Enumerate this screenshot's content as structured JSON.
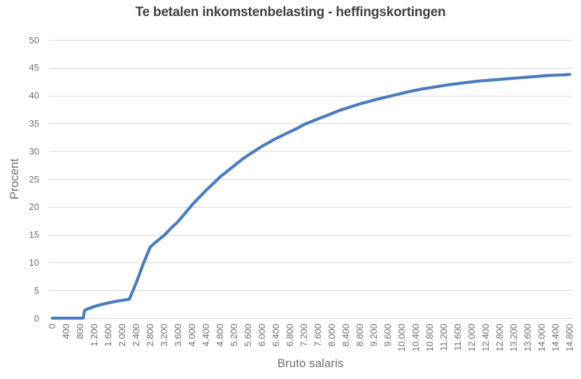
{
  "chart_data": {
    "type": "line",
    "title": "Te betalen inkomstenbelasting - heffingskortingen",
    "xlabel": "Bruto salaris",
    "ylabel": "Procent",
    "xlim": [
      0,
      14800
    ],
    "ylim": [
      0,
      50
    ],
    "y_ticks": [
      0,
      5,
      10,
      15,
      20,
      25,
      30,
      35,
      40,
      45,
      50
    ],
    "x_tick_step": 400,
    "x_tick_labels": [
      "0",
      "400",
      "800",
      "1.200",
      "1.600",
      "2.000",
      "2.400",
      "2.800",
      "3.200",
      "3.600",
      "4.000",
      "4.400",
      "4.800",
      "5.200",
      "5.600",
      "6.000",
      "6.400",
      "6.800",
      "7.200",
      "7.600",
      "8.000",
      "8.400",
      "8.800",
      "9.200",
      "9.600",
      "10.000",
      "10.400",
      "10.800",
      "11.200",
      "11.600",
      "12.000",
      "12.400",
      "12.800",
      "13.200",
      "13.600",
      "14.000",
      "14.400",
      "14.800"
    ],
    "grid": "horizontal",
    "legend": "none",
    "colors": {
      "line": "#4a7cbf",
      "grid": "#d9d9d9",
      "title_text": "#3f3f3f",
      "axis_text": "#6e6e6e"
    },
    "series": [
      {
        "points": [
          [
            0,
            0
          ],
          [
            200,
            0
          ],
          [
            400,
            0
          ],
          [
            600,
            0
          ],
          [
            800,
            0
          ],
          [
            880,
            0
          ],
          [
            920,
            1.4
          ],
          [
            1000,
            1.65
          ],
          [
            1200,
            2.1
          ],
          [
            1400,
            2.45
          ],
          [
            1600,
            2.75
          ],
          [
            1800,
            3.0
          ],
          [
            2000,
            3.2
          ],
          [
            2200,
            3.4
          ],
          [
            2400,
            6.4
          ],
          [
            2600,
            9.8
          ],
          [
            2800,
            12.8
          ],
          [
            3000,
            13.9
          ],
          [
            3200,
            14.9
          ],
          [
            3400,
            16.2
          ],
          [
            3600,
            17.4
          ],
          [
            3800,
            18.9
          ],
          [
            4000,
            20.4
          ],
          [
            4200,
            21.7
          ],
          [
            4400,
            23.0
          ],
          [
            4600,
            24.2
          ],
          [
            4800,
            25.4
          ],
          [
            5000,
            26.4
          ],
          [
            5200,
            27.4
          ],
          [
            5400,
            28.4
          ],
          [
            5600,
            29.3
          ],
          [
            5800,
            30.1
          ],
          [
            6000,
            30.9
          ],
          [
            6200,
            31.6
          ],
          [
            6400,
            32.3
          ],
          [
            6600,
            32.9
          ],
          [
            6800,
            33.5
          ],
          [
            7000,
            34.1
          ],
          [
            7200,
            34.8
          ],
          [
            7400,
            35.3
          ],
          [
            7600,
            35.8
          ],
          [
            7800,
            36.3
          ],
          [
            8000,
            36.8
          ],
          [
            8200,
            37.3
          ],
          [
            8400,
            37.7
          ],
          [
            8600,
            38.1
          ],
          [
            8800,
            38.5
          ],
          [
            9000,
            38.85
          ],
          [
            9200,
            39.2
          ],
          [
            9400,
            39.5
          ],
          [
            9600,
            39.8
          ],
          [
            9800,
            40.1
          ],
          [
            10000,
            40.4
          ],
          [
            10200,
            40.7
          ],
          [
            10400,
            40.95
          ],
          [
            10600,
            41.2
          ],
          [
            10800,
            41.4
          ],
          [
            11000,
            41.6
          ],
          [
            11200,
            41.8
          ],
          [
            11400,
            42.0
          ],
          [
            11600,
            42.15
          ],
          [
            11800,
            42.3
          ],
          [
            12000,
            42.45
          ],
          [
            12200,
            42.6
          ],
          [
            12400,
            42.7
          ],
          [
            12600,
            42.8
          ],
          [
            12800,
            42.9
          ],
          [
            13000,
            43.0
          ],
          [
            13200,
            43.1
          ],
          [
            13400,
            43.2
          ],
          [
            13600,
            43.3
          ],
          [
            13800,
            43.4
          ],
          [
            14000,
            43.5
          ],
          [
            14200,
            43.6
          ],
          [
            14400,
            43.65
          ],
          [
            14600,
            43.7
          ],
          [
            14800,
            43.8
          ]
        ]
      }
    ]
  }
}
